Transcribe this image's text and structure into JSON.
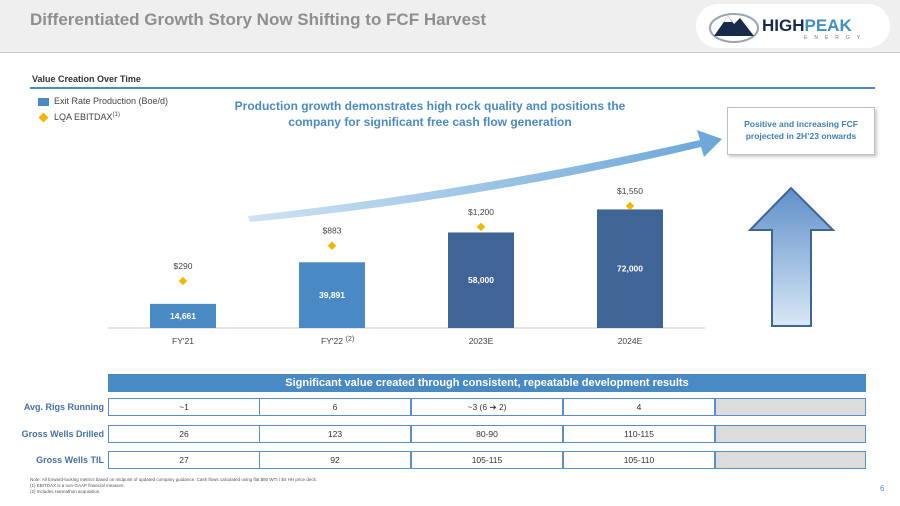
{
  "header": {
    "title": "Differentiated Growth Story Now Shifting to FCF Harvest",
    "logo_high": "HIGH",
    "logo_peak": "PEAK",
    "logo_energy": "ENERGY"
  },
  "section": {
    "title": "Value Creation Over Time"
  },
  "legend": {
    "bar_label": "Exit Rate Production (Boe/d)",
    "marker_label": "LQA EBITDAX",
    "marker_sup": "(1)"
  },
  "headline": "Production growth demonstrates high rock quality and positions the company for significant free cash flow generation",
  "callout": "Positive and increasing FCF projected in 2H’23 onwards",
  "colors": {
    "bar_light": "#4a8ac4",
    "bar_dark": "#3f6496",
    "marker": "#f2b800",
    "accent": "#4a8ac4"
  },
  "chart_data": {
    "type": "bar",
    "categories": [
      "FY'21",
      "FY'22",
      "2023E",
      "2024E"
    ],
    "category_sup": [
      "",
      "(2)",
      "",
      ""
    ],
    "series": [
      {
        "name": "Exit Rate Production (Boe/d)",
        "values": [
          14661,
          39891,
          58000,
          72000
        ],
        "labels": [
          "14,661",
          "39,891",
          "58,000",
          "72,000"
        ]
      },
      {
        "name": "LQA EBITDAX",
        "values": [
          290,
          883,
          1200,
          1550
        ],
        "labels": [
          "$290",
          "$883",
          "$1,200",
          "$1,550"
        ]
      }
    ],
    "ylim": [
      0,
      85000
    ]
  },
  "table": {
    "title": "Significant value created through consistent, repeatable development results",
    "rows": [
      {
        "label": "Avg. Rigs Running",
        "cells": [
          "~1",
          "6",
          "~3 (6 ➔ 2)",
          "4",
          ""
        ]
      },
      {
        "label": "Gross Wells Drilled",
        "cells": [
          "26",
          "123",
          "80-90",
          "110-115",
          ""
        ]
      },
      {
        "label": "Gross Wells TIL",
        "cells": [
          "27",
          "92",
          "105-115",
          "105-110",
          ""
        ]
      }
    ]
  },
  "notes": [
    "Note:     All forward-looking metrics based on midpoint of updated company guidance. Cash flows calculated using flat $80 WTI / $4 HH price deck.",
    "(1)         EBITDAX is a non-GAAP financial measure.",
    "(2)         Includes Hannathon acquisition."
  ],
  "page_number": "6"
}
